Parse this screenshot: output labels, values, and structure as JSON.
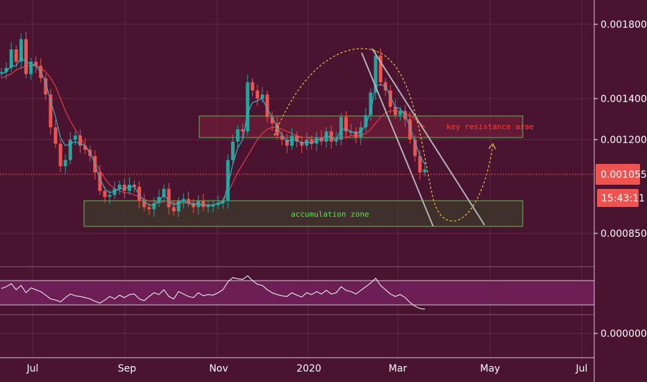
{
  "chart_data": {
    "type": "candlestick",
    "y_axis": {
      "ticks": [
        "0.001800",
        "0.001400",
        "0.001200",
        "0.000850"
      ],
      "price_badge": "0.001055",
      "timer_badge": "15:43:11"
    },
    "x_axis": {
      "labels": [
        "Jul",
        "Sep",
        "Nov",
        "2020",
        "Mar",
        "May",
        "Jul"
      ]
    },
    "annotations": {
      "resistance_label": "key resistance arae",
      "accumulation_label": "accumulation zone"
    },
    "indicator": {
      "tick": "0.000000"
    },
    "prices": [
      1.53,
      1.55,
      1.64,
      1.58,
      1.69,
      1.52,
      1.58,
      1.56,
      1.5,
      1.42,
      1.26,
      1.18,
      1.07,
      1.1,
      1.2,
      1.22,
      1.17,
      1.15,
      1.12,
      1.04,
      0.95,
      0.92,
      0.93,
      0.96,
      0.98,
      0.95,
      0.98,
      0.97,
      0.9,
      0.87,
      0.86,
      0.89,
      0.92,
      0.96,
      0.87,
      0.85,
      0.9,
      0.91,
      0.89,
      0.87,
      0.9,
      0.87,
      0.88,
      0.88,
      0.89,
      0.9,
      1.1,
      1.19,
      1.25,
      1.24,
      1.48,
      1.44,
      1.4,
      1.42,
      1.31,
      1.28,
      1.22,
      1.2,
      1.17,
      1.22,
      1.19,
      1.17,
      1.2,
      1.18,
      1.21,
      1.19,
      1.24,
      1.19,
      1.2,
      1.31,
      1.24,
      1.24,
      1.21,
      1.26,
      1.32,
      1.43,
      1.61,
      1.48,
      1.44,
      1.36,
      1.32,
      1.34,
      1.3,
      1.2,
      1.12,
      1.04,
      1.055
    ],
    "ma_fast": [
      1.52,
      1.53,
      1.56,
      1.56,
      1.6,
      1.58,
      1.57,
      1.56,
      1.53,
      1.48,
      1.39,
      1.31,
      1.21,
      1.17,
      1.18,
      1.19,
      1.18,
      1.17,
      1.14,
      1.08,
      1.01,
      0.96,
      0.94,
      0.95,
      0.96,
      0.96,
      0.97,
      0.97,
      0.93,
      0.9,
      0.88,
      0.88,
      0.9,
      0.93,
      0.9,
      0.88,
      0.89,
      0.9,
      0.89,
      0.88,
      0.89,
      0.88,
      0.88,
      0.88,
      0.89,
      0.89,
      0.98,
      1.08,
      1.16,
      1.2,
      1.33,
      1.38,
      1.39,
      1.4,
      1.35,
      1.31,
      1.26,
      1.22,
      1.19,
      1.2,
      1.2,
      1.18,
      1.19,
      1.18,
      1.2,
      1.2,
      1.22,
      1.21,
      1.2,
      1.25,
      1.25,
      1.24,
      1.23,
      1.24,
      1.27,
      1.34,
      1.46,
      1.47,
      1.46,
      1.41,
      1.36,
      1.35,
      1.32,
      1.26,
      1.19,
      1.12,
      1.08
    ],
    "ma_slow": [
      1.5,
      1.51,
      1.52,
      1.54,
      1.55,
      1.56,
      1.56,
      1.56,
      1.55,
      1.53,
      1.5,
      1.46,
      1.4,
      1.34,
      1.29,
      1.25,
      1.21,
      1.17,
      1.13,
      1.09,
      1.05,
      1.01,
      0.98,
      0.96,
      0.95,
      0.94,
      0.94,
      0.93,
      0.92,
      0.91,
      0.9,
      0.9,
      0.89,
      0.9,
      0.9,
      0.89,
      0.89,
      0.89,
      0.89,
      0.89,
      0.88,
      0.88,
      0.88,
      0.88,
      0.89,
      0.9,
      0.94,
      0.99,
      1.04,
      1.08,
      1.12,
      1.16,
      1.2,
      1.23,
      1.25,
      1.26,
      1.26,
      1.25,
      1.24,
      1.23,
      1.22,
      1.21,
      1.21,
      1.2,
      1.2,
      1.2,
      1.2,
      1.2,
      1.2,
      1.21,
      1.21,
      1.22,
      1.22,
      1.22,
      1.23,
      1.25,
      1.28,
      1.31,
      1.33,
      1.34,
      1.34,
      1.34,
      1.33,
      1.32,
      1.3,
      1.28,
      1.26
    ],
    "indicator_values": [
      57,
      60,
      65,
      55,
      62,
      50,
      58,
      55,
      52,
      46,
      40,
      38,
      35,
      42,
      48,
      45,
      44,
      42,
      40,
      36,
      33,
      38,
      44,
      40,
      46,
      42,
      47,
      48,
      40,
      37,
      44,
      50,
      47,
      55,
      44,
      40,
      52,
      48,
      44,
      42,
      50,
      45,
      47,
      46,
      50,
      55,
      68,
      75,
      73,
      72,
      78,
      70,
      64,
      62,
      55,
      50,
      47,
      45,
      44,
      50,
      46,
      43,
      50,
      47,
      52,
      48,
      54,
      48,
      50,
      60,
      54,
      52,
      48,
      54,
      60,
      66,
      74,
      62,
      55,
      48,
      44,
      47,
      42,
      34,
      28,
      24,
      23
    ]
  }
}
